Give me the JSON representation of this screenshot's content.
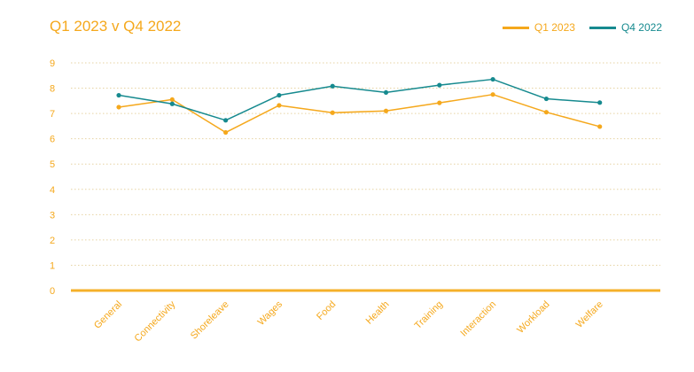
{
  "colors": {
    "q1": "#f5a81c",
    "q4": "#168a8f",
    "grid": "#e6d3a3",
    "axis": "#f5b02a",
    "text": "#f5a81c"
  },
  "chart_data": {
    "type": "line",
    "title": "Q1 2023 v Q4 2022",
    "categories": [
      "General",
      "Connectivity",
      "Shoreleave",
      "Wages",
      "Food",
      "Health",
      "Training",
      "Interaction",
      "Workload",
      "Welfare"
    ],
    "series": [
      {
        "name": "Q1 2023",
        "color": "#f5a81c",
        "values": [
          7.25,
          7.55,
          6.25,
          7.32,
          7.03,
          7.1,
          7.42,
          7.75,
          7.05,
          6.48
        ]
      },
      {
        "name": "Q4 2022",
        "color": "#168a8f",
        "values": [
          7.72,
          7.38,
          6.73,
          7.72,
          8.08,
          7.83,
          8.12,
          8.35,
          7.58,
          7.43
        ]
      }
    ],
    "yticks": [
      "0",
      "1",
      "2",
      "3",
      "4",
      "5",
      "6",
      "7",
      "8",
      "9"
    ],
    "ylim": [
      0,
      9
    ],
    "xlabel": "",
    "ylabel": "",
    "legend": "top-right",
    "grid": true
  }
}
